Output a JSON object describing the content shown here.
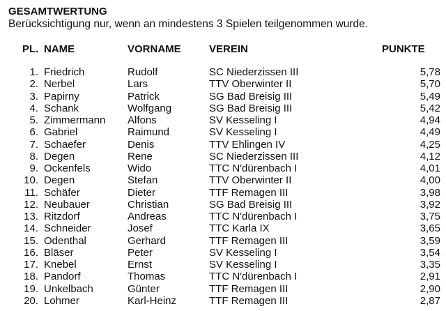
{
  "title": "GESAMTWERTUNG",
  "subtitle": "Berücksichtigung nur, wenn an mindestens 3 Spielen teilgenommen wurde.",
  "columns": {
    "pl": "PL.",
    "name": "NAME",
    "vorname": "VORNAME",
    "verein": "VEREIN",
    "punkte": "PUNKTE"
  },
  "rows": [
    {
      "pl": "1.",
      "name": "Friedrich",
      "vorname": "Rudolf",
      "verein": "SC Niederzissen III",
      "punkte": "5,78"
    },
    {
      "pl": "2.",
      "name": "Nerbel",
      "vorname": "Lars",
      "verein": "TTV Oberwinter II",
      "punkte": "5,70"
    },
    {
      "pl": "3.",
      "name": "Papirny",
      "vorname": "Patrick",
      "verein": "SG Bad Breisig III",
      "punkte": "5,49"
    },
    {
      "pl": "4.",
      "name": "Schank",
      "vorname": "Wolfgang",
      "verein": "SG Bad Breisig III",
      "punkte": "5,42"
    },
    {
      "pl": "5.",
      "name": "Zimmermann",
      "vorname": "Alfons",
      "verein": "SV Kesseling I",
      "punkte": "4,94"
    },
    {
      "pl": "6.",
      "name": "Gabriel",
      "vorname": "Raimund",
      "verein": "SV Kesseling I",
      "punkte": "4,49"
    },
    {
      "pl": "7.",
      "name": "Schaefer",
      "vorname": "Denis",
      "verein": "TTV Ehlingen IV",
      "punkte": "4,25"
    },
    {
      "pl": "8.",
      "name": "Degen",
      "vorname": "Rene",
      "verein": "SC Niederzissen III",
      "punkte": "4,12"
    },
    {
      "pl": "9.",
      "name": "Ockenfels",
      "vorname": "Wido",
      "verein": "TTC N'dürenbach I",
      "punkte": "4,01"
    },
    {
      "pl": "10.",
      "name": "Degen",
      "vorname": "Stefan",
      "verein": "TTV Oberwinter II",
      "punkte": "4,00"
    },
    {
      "pl": "11.",
      "name": "Schäfer",
      "vorname": "Dieter",
      "verein": "TTF Remagen III",
      "punkte": "3,98"
    },
    {
      "pl": "12.",
      "name": "Neubauer",
      "vorname": "Christian",
      "verein": "SG Bad Breisig III",
      "punkte": "3,92"
    },
    {
      "pl": "13.",
      "name": "Ritzdorf",
      "vorname": "Andreas",
      "verein": "TTC N'dürenbach I",
      "punkte": "3,75"
    },
    {
      "pl": "14.",
      "name": "Schneider",
      "vorname": "Josef",
      "verein": "TTC Karla IX",
      "punkte": "3,65"
    },
    {
      "pl": "15.",
      "name": "Odenthal",
      "vorname": "Gerhard",
      "verein": "TTF Remagen III",
      "punkte": "3,59"
    },
    {
      "pl": "16.",
      "name": "Bläser",
      "vorname": "Peter",
      "verein": "SV Kesseling I",
      "punkte": "3,54"
    },
    {
      "pl": "17.",
      "name": "Knebel",
      "vorname": "Ernst",
      "verein": "SV Kesseling I",
      "punkte": "3,35"
    },
    {
      "pl": "18.",
      "name": "Pandorf",
      "vorname": "Thomas",
      "verein": "TTC N'dürenbach I",
      "punkte": "2,91"
    },
    {
      "pl": "19.",
      "name": "Unkelbach",
      "vorname": "Günter",
      "verein": "TTF Remagen III",
      "punkte": "2,90"
    },
    {
      "pl": "20.",
      "name": "Lohmer",
      "vorname": "Karl-Heinz",
      "verein": "TTF Remagen III",
      "punkte": "2,87"
    }
  ]
}
